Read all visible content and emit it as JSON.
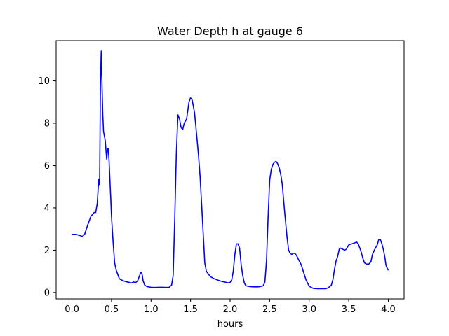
{
  "chart_data": {
    "type": "line",
    "title": "Water Depth h at gauge 6",
    "xlabel": "hours",
    "ylabel": "",
    "xlim": [
      -0.2,
      4.2
    ],
    "ylim": [
      -0.3,
      11.9
    ],
    "xticks": [
      "0.0",
      "0.5",
      "1.0",
      "1.5",
      "2.0",
      "2.5",
      "3.0",
      "3.5",
      "4.0"
    ],
    "yticks": [
      "0",
      "2",
      "4",
      "6",
      "8",
      "10"
    ],
    "grid": false,
    "line_color": "#0000ff",
    "series": [
      {
        "name": "",
        "x": [
          0.0,
          0.05,
          0.1,
          0.13,
          0.16,
          0.2,
          0.24,
          0.28,
          0.3,
          0.32,
          0.33,
          0.34,
          0.35,
          0.36,
          0.37,
          0.38,
          0.39,
          0.4,
          0.42,
          0.44,
          0.45,
          0.46,
          0.47,
          0.48,
          0.49,
          0.5,
          0.52,
          0.54,
          0.56,
          0.6,
          0.65,
          0.7,
          0.75,
          0.78,
          0.8,
          0.83,
          0.85,
          0.87,
          0.88,
          0.89,
          0.9,
          0.92,
          0.95,
          1.0,
          1.05,
          1.1,
          1.15,
          1.2,
          1.23,
          1.26,
          1.28,
          1.3,
          1.32,
          1.34,
          1.36,
          1.38,
          1.4,
          1.42,
          1.45,
          1.48,
          1.5,
          1.52,
          1.55,
          1.58,
          1.6,
          1.62,
          1.65,
          1.68,
          1.7,
          1.75,
          1.8,
          1.85,
          1.9,
          1.95,
          1.98,
          2.0,
          2.02,
          2.04,
          2.06,
          2.08,
          2.1,
          2.12,
          2.14,
          2.16,
          2.18,
          2.2,
          2.25,
          2.3,
          2.35,
          2.38,
          2.42,
          2.44,
          2.46,
          2.48,
          2.5,
          2.52,
          2.54,
          2.56,
          2.58,
          2.6,
          2.62,
          2.64,
          2.66,
          2.68,
          2.7,
          2.72,
          2.74,
          2.76,
          2.78,
          2.8,
          2.82,
          2.84,
          2.86,
          2.9,
          2.93,
          2.96,
          3.0,
          3.05,
          3.1,
          3.15,
          3.2,
          3.24,
          3.26,
          3.28,
          3.3,
          3.32,
          3.34,
          3.36,
          3.38,
          3.4,
          3.42,
          3.45,
          3.47,
          3.5,
          3.54,
          3.58,
          3.6,
          3.62,
          3.65,
          3.68,
          3.7,
          3.72,
          3.75,
          3.78,
          3.8,
          3.83,
          3.86,
          3.88,
          3.9,
          3.92,
          3.94,
          3.96,
          3.97,
          3.98,
          4.0
        ],
        "y": [
          2.75,
          2.75,
          2.7,
          2.65,
          2.75,
          3.2,
          3.6,
          3.78,
          3.78,
          4.2,
          4.8,
          5.35,
          5.1,
          9.8,
          11.4,
          9.8,
          8.4,
          7.6,
          7.2,
          6.3,
          6.8,
          6.8,
          6.2,
          5.3,
          4.5,
          3.6,
          2.4,
          1.4,
          1.05,
          0.65,
          0.55,
          0.5,
          0.45,
          0.5,
          0.45,
          0.55,
          0.75,
          0.95,
          0.95,
          0.8,
          0.55,
          0.35,
          0.28,
          0.25,
          0.24,
          0.25,
          0.25,
          0.24,
          0.25,
          0.35,
          0.8,
          3.5,
          6.5,
          8.4,
          8.2,
          7.8,
          7.7,
          8.0,
          8.2,
          9.0,
          9.2,
          9.1,
          8.5,
          7.3,
          6.5,
          5.5,
          3.5,
          1.4,
          1.0,
          0.75,
          0.65,
          0.58,
          0.52,
          0.48,
          0.45,
          0.48,
          0.6,
          1.0,
          1.8,
          2.3,
          2.3,
          2.1,
          1.3,
          0.8,
          0.45,
          0.32,
          0.28,
          0.27,
          0.27,
          0.28,
          0.32,
          0.5,
          1.5,
          3.5,
          5.3,
          5.8,
          6.05,
          6.15,
          6.2,
          6.1,
          5.9,
          5.6,
          5.1,
          4.2,
          3.4,
          2.6,
          2.0,
          1.85,
          1.8,
          1.85,
          1.85,
          1.75,
          1.6,
          1.3,
          0.95,
          0.6,
          0.3,
          0.2,
          0.18,
          0.18,
          0.18,
          0.22,
          0.28,
          0.35,
          0.6,
          1.1,
          1.5,
          1.7,
          2.05,
          2.1,
          2.05,
          2.0,
          2.05,
          2.25,
          2.3,
          2.35,
          2.38,
          2.3,
          2.0,
          1.6,
          1.4,
          1.35,
          1.33,
          1.45,
          1.8,
          2.05,
          2.25,
          2.5,
          2.5,
          2.3,
          2.0,
          1.6,
          1.3,
          1.2,
          1.05
        ]
      }
    ]
  }
}
